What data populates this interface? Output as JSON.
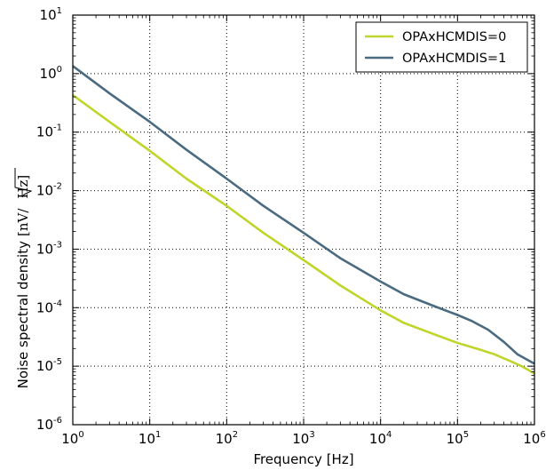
{
  "chart_data": {
    "type": "line",
    "xscale": "log",
    "yscale": "log",
    "xlim": [
      1,
      1000000
    ],
    "ylim": [
      1e-06,
      10
    ],
    "grid": true,
    "legend_position": "top-right",
    "xlabel": "Frequency [Hz]",
    "ylabel": "Noise spectral density",
    "ylabel_unit_parts": [
      "[nV/",
      "Hz",
      "]"
    ],
    "x_ticks": [
      {
        "base": "10",
        "exp": "0"
      },
      {
        "base": "10",
        "exp": "1"
      },
      {
        "base": "10",
        "exp": "2"
      },
      {
        "base": "10",
        "exp": "3"
      },
      {
        "base": "10",
        "exp": "4"
      },
      {
        "base": "10",
        "exp": "5"
      },
      {
        "base": "10",
        "exp": "6"
      }
    ],
    "y_ticks": [
      {
        "base": "10",
        "exp": "-6"
      },
      {
        "base": "10",
        "exp": "-5"
      },
      {
        "base": "10",
        "exp": "-4"
      },
      {
        "base": "10",
        "exp": "-3"
      },
      {
        "base": "10",
        "exp": "-2"
      },
      {
        "base": "10",
        "exp": "-1"
      },
      {
        "base": "10",
        "exp": "0"
      },
      {
        "base": "10",
        "exp": "1"
      }
    ],
    "series": [
      {
        "name": "OPAxHCMDIS=0",
        "color": "#bfd52a",
        "x": [
          1,
          3,
          10,
          30,
          100,
          300,
          1000,
          3000,
          10000,
          20000,
          50000,
          100000,
          200000,
          300000,
          500000,
          700000,
          1000000
        ],
        "y": [
          0.43,
          0.15,
          0.048,
          0.016,
          0.0055,
          0.0019,
          0.00065,
          0.00024,
          9e-05,
          5.5e-05,
          3.5e-05,
          2.5e-05,
          1.9e-05,
          1.6e-05,
          1.2e-05,
          9.8e-06,
          7.5e-06
        ]
      },
      {
        "name": "OPAxHCMDIS=1",
        "color": "#4a6a80",
        "x": [
          1,
          3,
          10,
          30,
          100,
          300,
          1000,
          3000,
          10000,
          20000,
          50000,
          100000,
          150000,
          250000,
          400000,
          600000,
          1000000
        ],
        "y": [
          1.35,
          0.46,
          0.15,
          0.05,
          0.016,
          0.0055,
          0.0019,
          0.0007,
          0.00028,
          0.00017,
          0.000106,
          7.5e-05,
          6e-05,
          4.2e-05,
          2.6e-05,
          1.6e-05,
          1.1e-05
        ]
      }
    ]
  }
}
